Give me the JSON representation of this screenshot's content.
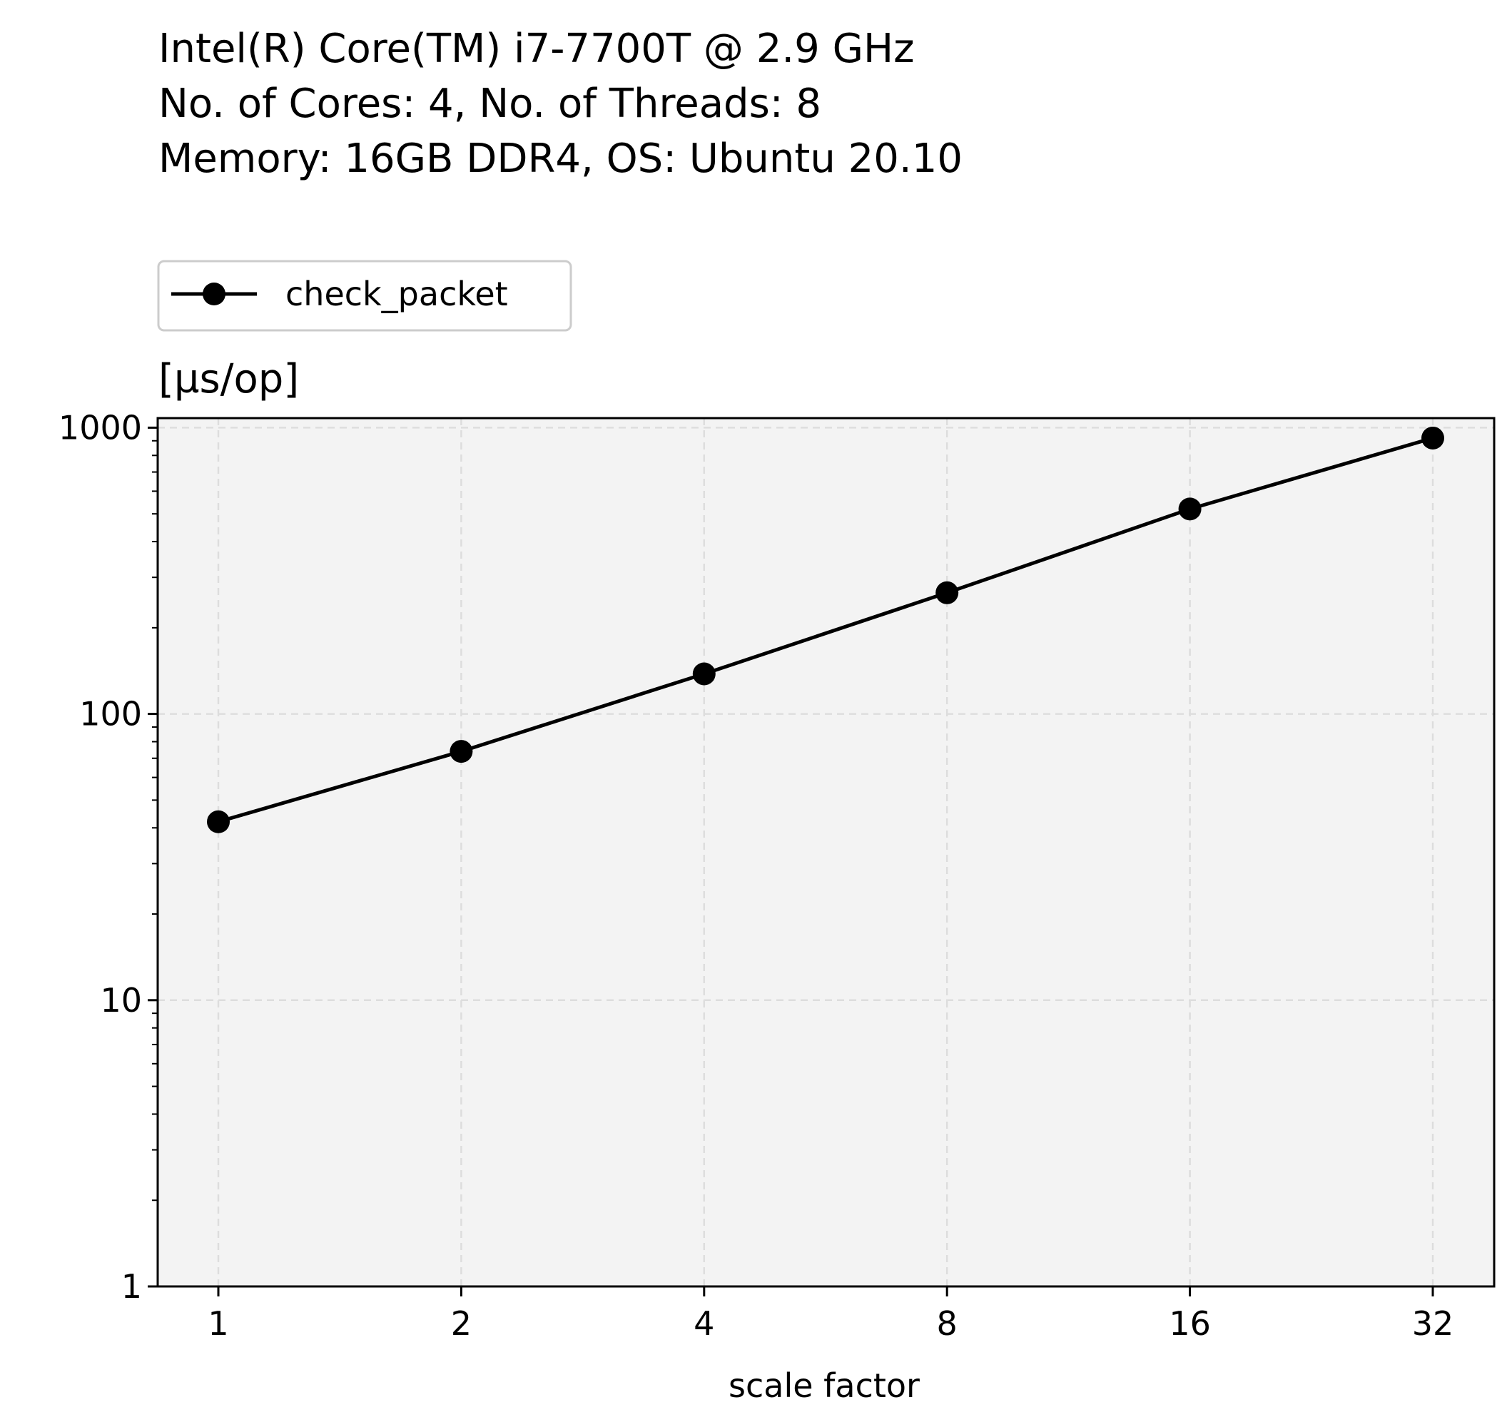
{
  "header": {
    "lines": [
      "Intel(R) Core(TM) i7-7700T @ 2.9 GHz",
      "No. of Cores: 4, No. of Threads: 8",
      "Memory: 16GB DDR4, OS: Ubuntu 20.10"
    ]
  },
  "chart_data": {
    "type": "line",
    "title": "",
    "xlabel": "scale factor",
    "ylabel": "[µs/op]",
    "x": [
      1,
      2,
      4,
      8,
      16,
      32
    ],
    "x_tick_labels": [
      "1",
      "2",
      "4",
      "8",
      "16",
      "32"
    ],
    "x_scale": "log2",
    "y_scale": "log",
    "ylim": [
      1,
      1080
    ],
    "y_ticks": [
      1,
      10,
      100,
      1000
    ],
    "y_tick_labels": [
      "1",
      "10",
      "100",
      "1000"
    ],
    "grid": true,
    "legend_position": "above the plot, left",
    "series": [
      {
        "name": "check_packet",
        "color": "#000000",
        "marker": "circle",
        "values": [
          42,
          74,
          138,
          265,
          520,
          920
        ]
      }
    ],
    "colors": {
      "plot_background": "#f3f3f3",
      "grid": "#dddddd",
      "line": "#000000"
    }
  }
}
